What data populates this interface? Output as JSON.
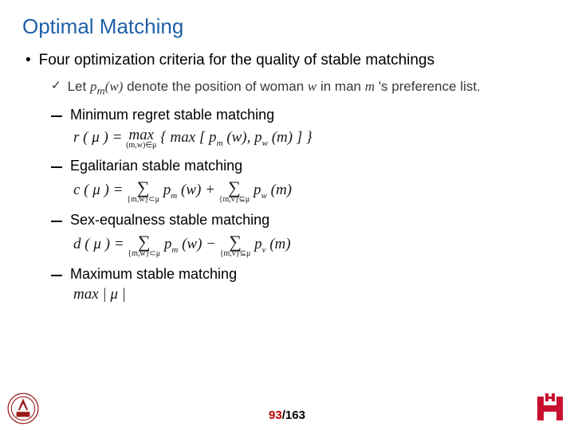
{
  "title": "Optimal Matching",
  "main_bullet": "Four optimization criteria for the quality of stable matchings",
  "check": {
    "prefix": "Let ",
    "pm": "p",
    "pm_sub": "m",
    "pm_arg": "(w)",
    "mid1": " denote the position of woman ",
    "w": "w",
    "mid2": "  in man ",
    "m": "m",
    "suffix": " 's preference list."
  },
  "items": [
    {
      "label": "Minimum regret stable matching",
      "formula_html": "r ( μ ) = <span class='stack'><span>max</span><span class='und'>(m,w)∈μ</span></span> { max [ p<span class='sub'>m</span> (w), p<span class='sub'>w</span> (m) ] }"
    },
    {
      "label": "Egalitarian stable matching",
      "formula_html": "c ( μ ) = <span class='stack'><span style='font-size:22px'>∑</span><span class='und'>{m,w}⊂μ</span></span> p<span class='sub'>m</span> (w) + <span class='stack'><span style='font-size:22px'>∑</span><span class='und'>{m,v}⊆μ</span></span> p<span class='sub'>w</span> (m)"
    },
    {
      "label": "Sex-equalness stable matching",
      "formula_html": "d ( μ ) = <span class='stack'><span style='font-size:22px'>∑</span><span class='und'>{m,w}⊂μ</span></span> p<span class='sub'>m</span> (w) − <span class='stack'><span style='font-size:22px'>∑</span><span class='und'>{m,v}⊆μ</span></span> p<span class='sub'>v</span> (m)"
    },
    {
      "label": "Maximum stable matching",
      "formula_html": "max | μ |"
    }
  ],
  "footer": {
    "current": "93",
    "sep": "/",
    "total": "163"
  },
  "colors": {
    "title": "#1f60a8",
    "page_current": "#c00000",
    "page_total": "#000000",
    "logo_left": "#9a1b1b",
    "logo_right": "#c8102e"
  }
}
